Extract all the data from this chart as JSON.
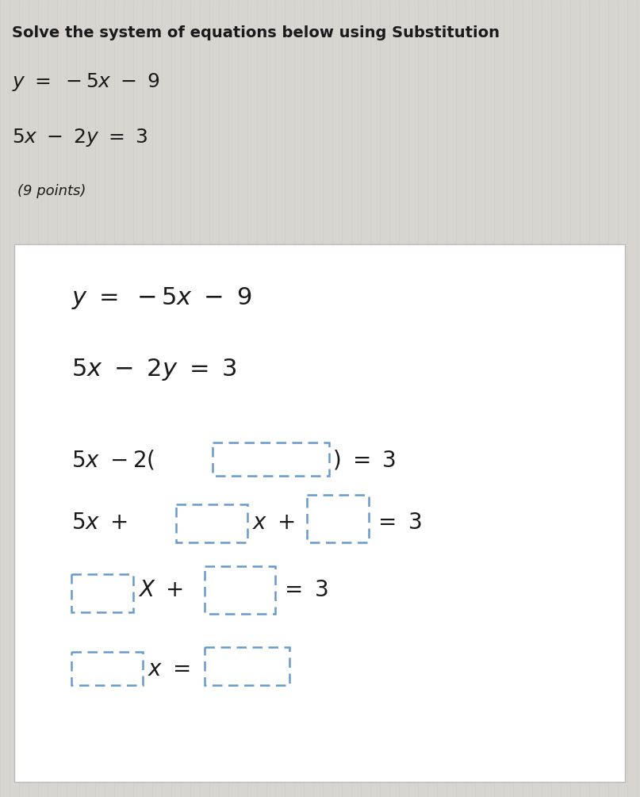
{
  "title": "Solve the system of equations below using Substitution",
  "points": "(9 points)",
  "bg_color": "#d8d4d0",
  "white_bg": "#ffffff",
  "text_color": "#1a1a1a",
  "box_color": "#6699cc",
  "title_fs": 14,
  "eq_header_fs": 18,
  "points_fs": 13,
  "inner_eq_fs": 22,
  "step_fs": 20
}
